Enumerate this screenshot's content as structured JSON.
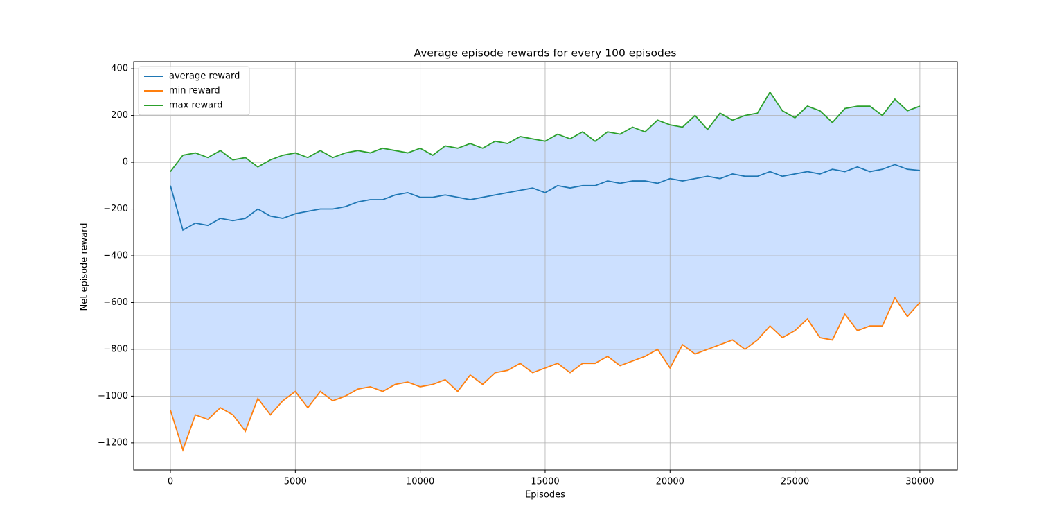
{
  "chart_data": {
    "type": "line",
    "title": "Average episode rewards for every 100 episodes",
    "xlabel": "Episodes",
    "ylabel": "Net episode reward",
    "x": [
      0,
      500,
      1000,
      1500,
      2000,
      2500,
      3000,
      3500,
      4000,
      4500,
      5000,
      5500,
      6000,
      6500,
      7000,
      7500,
      8000,
      8500,
      9000,
      9500,
      10000,
      10500,
      11000,
      11500,
      12000,
      12500,
      13000,
      13500,
      14000,
      14500,
      15000,
      15500,
      16000,
      16500,
      17000,
      17500,
      18000,
      18500,
      19000,
      19500,
      20000,
      20500,
      21000,
      21500,
      22000,
      22500,
      23000,
      23500,
      24000,
      24500,
      25000,
      25500,
      26000,
      26500,
      27000,
      27500,
      28000,
      28500,
      29000,
      29500,
      30000
    ],
    "series": [
      {
        "name": "average reward",
        "color": "#1f77b4",
        "values": [
          -100,
          -290,
          -260,
          -270,
          -240,
          -250,
          -240,
          -200,
          -230,
          -240,
          -220,
          -210,
          -200,
          -200,
          -190,
          -170,
          -160,
          -160,
          -140,
          -130,
          -150,
          -150,
          -140,
          -150,
          -160,
          -150,
          -140,
          -130,
          -120,
          -110,
          -130,
          -100,
          -110,
          -100,
          -100,
          -80,
          -90,
          -80,
          -80,
          -90,
          -70,
          -80,
          -70,
          -60,
          -70,
          -50,
          -60,
          -60,
          -40,
          -60,
          -50,
          -40,
          -50,
          -30,
          -40,
          -20,
          -40,
          -30,
          -10,
          -30,
          -35
        ]
      },
      {
        "name": "min reward",
        "color": "#ff7f0e",
        "values": [
          -1060,
          -1230,
          -1080,
          -1100,
          -1050,
          -1080,
          -1150,
          -1010,
          -1080,
          -1020,
          -980,
          -1050,
          -980,
          -1020,
          -1000,
          -970,
          -960,
          -980,
          -950,
          -940,
          -960,
          -950,
          -930,
          -980,
          -910,
          -950,
          -900,
          -890,
          -860,
          -900,
          -880,
          -860,
          -900,
          -860,
          -860,
          -830,
          -870,
          -850,
          -830,
          -800,
          -880,
          -780,
          -820,
          -800,
          -780,
          -760,
          -800,
          -760,
          -700,
          -750,
          -720,
          -670,
          -750,
          -760,
          -650,
          -720,
          -700,
          -700,
          -580,
          -660,
          -600
        ]
      },
      {
        "name": "max reward",
        "color": "#2ca02c",
        "values": [
          -40,
          30,
          40,
          20,
          50,
          10,
          20,
          -20,
          10,
          30,
          40,
          20,
          50,
          20,
          40,
          50,
          40,
          60,
          50,
          40,
          60,
          30,
          70,
          60,
          80,
          60,
          90,
          80,
          110,
          100,
          90,
          120,
          100,
          130,
          90,
          130,
          120,
          150,
          130,
          180,
          160,
          150,
          200,
          140,
          210,
          180,
          200,
          210,
          300,
          220,
          190,
          240,
          220,
          170,
          230,
          240,
          240,
          200,
          270,
          220,
          240
        ]
      }
    ],
    "fill_color": "#cce0ff",
    "xlim": [
      -1470,
      31500
    ],
    "ylim": [
      -1316,
      430
    ],
    "xticks": [
      0,
      5000,
      10000,
      15000,
      20000,
      25000,
      30000
    ],
    "yticks": [
      {
        "value": -1200,
        "label": "−1200"
      },
      {
        "value": -1000,
        "label": "−1000"
      },
      {
        "value": -800,
        "label": "−800"
      },
      {
        "value": -600,
        "label": "−600"
      },
      {
        "value": -400,
        "label": "−400"
      },
      {
        "value": -200,
        "label": "−200"
      },
      0,
      200,
      400
    ],
    "grid": true,
    "legend": "upper left"
  }
}
